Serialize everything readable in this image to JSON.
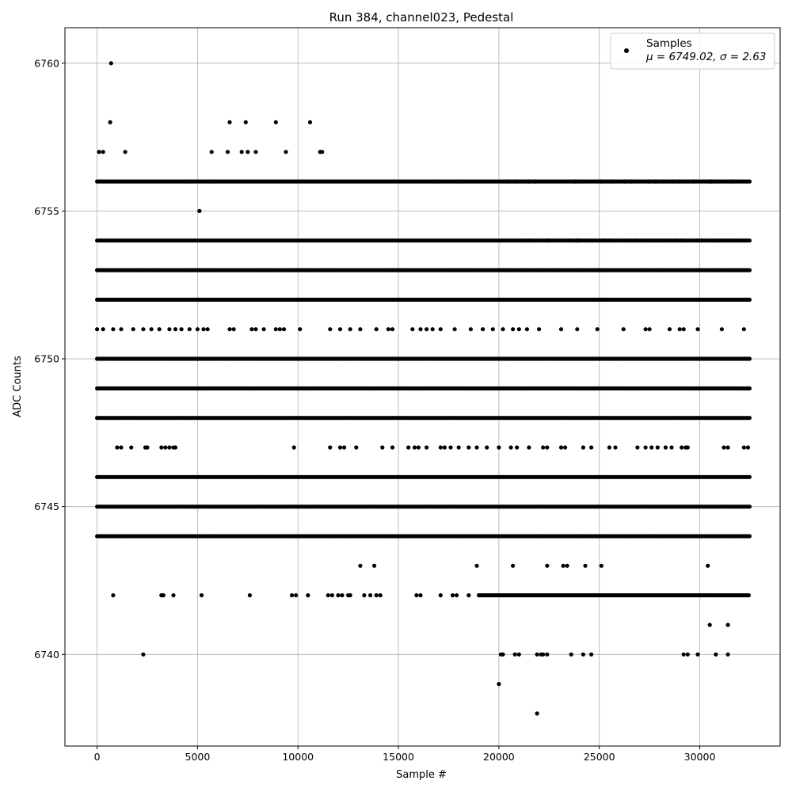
{
  "chart_data": {
    "type": "scatter",
    "title": "Run 384, channel023, Pedestal",
    "xlabel": "Sample #",
    "ylabel": "ADC Counts",
    "xlim": [
      -1600,
      34000
    ],
    "ylim": [
      6736.9,
      6761.2
    ],
    "xticks": [
      0,
      5000,
      10000,
      15000,
      20000,
      25000,
      30000
    ],
    "yticks": [
      6740,
      6745,
      6750,
      6755,
      6760
    ],
    "grid": true,
    "legend_position": "top-right",
    "marker_color": "#000000",
    "legend": {
      "label": "Samples",
      "stats": "μ = 6749.02, σ = 2.63"
    },
    "n_samples": 32500,
    "dense_levels": [
      {
        "y": 6752,
        "x": [
          0,
          32500
        ]
      },
      {
        "y": 6750,
        "x": [
          0,
          32500
        ]
      },
      {
        "y": 6749,
        "x": [
          0,
          32500
        ]
      },
      {
        "y": 6748,
        "x": [
          0,
          32500
        ]
      },
      {
        "y": 6746,
        "x": [
          0,
          32500
        ]
      },
      {
        "y": 6745,
        "x": [
          0,
          32500
        ]
      },
      {
        "y": 6744,
        "x": [
          0,
          32500
        ]
      },
      {
        "y": 6753,
        "x": [
          0,
          32500
        ]
      },
      {
        "y": 6754,
        "x": [
          0,
          32500
        ]
      },
      {
        "y": 6756,
        "x": [
          0,
          32500
        ]
      },
      {
        "y": 6742,
        "x": [
          19000,
          32500
        ]
      }
    ],
    "sparse_levels": [
      {
        "y": 6756,
        "x": [
          20500,
          20900,
          21500,
          21800,
          23800,
          25100,
          25600,
          26300,
          26600,
          27500,
          27800,
          28200,
          28700,
          29000,
          29700,
          30500,
          30600,
          31600
        ]
      },
      {
        "y": 6754,
        "x": [
          21200,
          21500,
          22400,
          22500,
          23500,
          23900,
          24000,
          24500,
          25300,
          25500,
          26400,
          26800,
          27400,
          27700,
          28100,
          28500,
          28800,
          29100,
          29900,
          30100,
          30700,
          31300,
          31500,
          32200
        ]
      },
      {
        "y": 6751,
        "x": [
          0,
          300,
          800,
          1200,
          1800,
          2300,
          2700,
          3100,
          3600,
          3900,
          4200,
          4600,
          5000,
          5300,
          5500,
          6600,
          6800,
          7700,
          7900,
          8300,
          8900,
          9100,
          9300,
          10100,
          11600,
          12100,
          12600,
          13100,
          13900,
          14500,
          14700,
          15700,
          16100,
          16400,
          16700,
          17100,
          17800,
          18600,
          19200,
          19700,
          20200,
          20700,
          21000,
          21400,
          22000,
          23100,
          23900,
          24900,
          26200,
          27300,
          27500,
          28500,
          29000,
          29200,
          29900,
          31100,
          32200
        ]
      },
      {
        "y": 6747,
        "x": [
          1000,
          1200,
          1700,
          2400,
          2500,
          3200,
          3400,
          3600,
          3800,
          3900,
          9800,
          11600,
          12100,
          12300,
          12900,
          14200,
          14700,
          15500,
          15800,
          16000,
          16400,
          17100,
          17300,
          17600,
          18000,
          18500,
          18900,
          19400,
          20000,
          20600,
          20900,
          21500,
          22200,
          22400,
          23100,
          23300,
          24200,
          24600,
          25500,
          25800,
          26900,
          27300,
          27600,
          27900,
          28300,
          28600,
          29100,
          29300,
          29400,
          31200,
          31400,
          32200,
          32400
        ]
      },
      {
        "y": 6743,
        "x": [
          13100,
          13800,
          18900,
          20700,
          22400,
          23200,
          23400,
          24300,
          25100,
          30400
        ]
      },
      {
        "y": 6742,
        "x": [
          800,
          3200,
          3300,
          3800,
          5200,
          7600,
          9700,
          9900,
          10500,
          11500,
          11700,
          12000,
          12200,
          12500,
          12600,
          13300,
          13600,
          13900,
          14100,
          15900,
          16100,
          17100,
          17700,
          17900,
          18500
        ]
      },
      {
        "y": 6740,
        "x": [
          2300,
          20100,
          20200,
          20800,
          21000,
          21900,
          22100,
          22200,
          22400,
          23600,
          24200,
          24600,
          29200,
          29400,
          29900,
          30800,
          31400
        ]
      },
      {
        "y": 6741,
        "x": [
          30500,
          31400
        ]
      }
    ],
    "outliers": [
      {
        "x": 700,
        "y": 6760
      },
      {
        "x": 650,
        "y": 6758
      },
      {
        "x": 6600,
        "y": 6758
      },
      {
        "x": 7400,
        "y": 6758
      },
      {
        "x": 8900,
        "y": 6758
      },
      {
        "x": 10600,
        "y": 6758
      },
      {
        "x": 100,
        "y": 6757
      },
      {
        "x": 300,
        "y": 6757
      },
      {
        "x": 1400,
        "y": 6757
      },
      {
        "x": 5700,
        "y": 6757
      },
      {
        "x": 6500,
        "y": 6757
      },
      {
        "x": 7200,
        "y": 6757
      },
      {
        "x": 7500,
        "y": 6757
      },
      {
        "x": 7900,
        "y": 6757
      },
      {
        "x": 9400,
        "y": 6757
      },
      {
        "x": 11100,
        "y": 6757
      },
      {
        "x": 11200,
        "y": 6757
      },
      {
        "x": 5100,
        "y": 6755
      },
      {
        "x": 20000,
        "y": 6739
      },
      {
        "x": 21900,
        "y": 6738
      }
    ]
  }
}
